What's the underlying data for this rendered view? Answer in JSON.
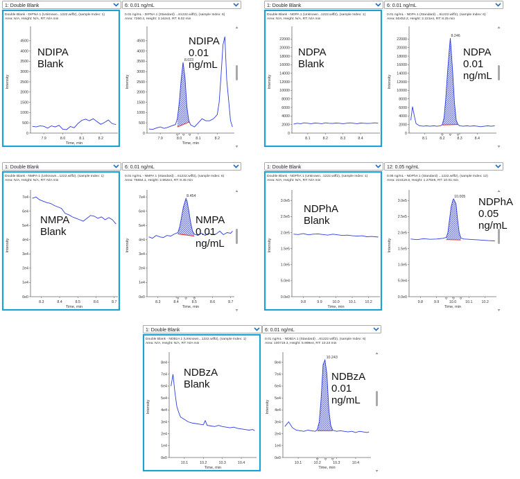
{
  "panels": [
    {
      "dropdown": "1: Double Blank",
      "header1": "Double Blank - DIPNA 1 (Unknown...1222.wiff2), (sample Index: 1)",
      "header2": "Area: N/A, Height: N/A, RT: N/A min",
      "overlay": [
        "NDIPA",
        "Blank"
      ],
      "highlight": true
    },
    {
      "dropdown": "6: 0.01 ng/mL",
      "header1": "0.01 ng/mL - DIPNA 1 (Standard) ...61222.wiff2), (sample Index: 6)",
      "header2": "Area: 7260.4, Height: 3.162e3, RT: 8.02 min",
      "overlay": [
        "NDIPA",
        "0.01",
        "ng/mL"
      ],
      "highlight": false
    },
    {
      "dropdown": "1: Double Blank",
      "header1": "Double Blank - NDPA 1 (Unknown...1222.wiff2), (sample Index: 1)",
      "header2": "Area: N/A, Height: N/A, RT: N/A min",
      "overlay": [
        "NDPA",
        "Blank"
      ],
      "highlight": true
    },
    {
      "dropdown": "6: 0.01 ng/mL",
      "header1": "0.01 ng/mL - NDPA 1 (Standard) ...61222.wiff2), (sample Index: 6)",
      "header2": "Area: 50453.2, Height: 2.221e4, RT: 8.25 min",
      "overlay": [
        "NDPA",
        "0.01",
        "ng/mL"
      ],
      "highlight": false
    },
    {
      "dropdown": "1: Double Blank",
      "header1": "Double Blank - NMPA 1 (Unknown...1222.wiff2), (sample Index: 1)",
      "header2": "Area: N/A, Height: N/A, RT: N/A min",
      "overlay": [
        "NMPA",
        "Blank"
      ],
      "highlight": true
    },
    {
      "dropdown": "6: 0.01 ng/mL",
      "header1": "0.01 ng/mL - NMPA 1 (Standard) ...61222.wiff2), (sample Index: 6)",
      "header2": "Area: 75654.1, Height: 2.862e4, RT: 8.45 min",
      "overlay": [
        "NMPA",
        "0.01",
        "ng/mL"
      ],
      "highlight": false
    },
    {
      "dropdown": "1: Double Blank",
      "header1": "Double Blank - NDPhA 1 (Unknown...1222.wiff2), (sample Index: 1)",
      "header2": "Area: N/A, Height: N/A, RT: N/A min",
      "overlay": [
        "NDPhA",
        "Blank"
      ],
      "highlight": true
    },
    {
      "dropdown": "12: 0.05 ng/mL",
      "header1": "0.05 ng/mL - NDPhA 1 (Standard) ...1222.wiff2), (sample Index: 12)",
      "header2": "Area: 224119.6, Height: 1.275e5, RT: 10.01 min",
      "overlay": [
        "NDPhA",
        "0.05",
        "ng/mL"
      ],
      "highlight": false
    },
    {
      "dropdown": "1: Double Blank",
      "header1": "Double Blank - NDBzA 1 (Unknown...1222.wiff2), (sample Index: 1)",
      "header2": "Area: N/A, Height: N/A, RT: N/A min",
      "overlay": [
        "NDBzA",
        "Blank"
      ],
      "highlight": true
    },
    {
      "dropdown": "6: 0.01 ng/mL",
      "header1": "0.01 ng/mL - NDBzA 1 (Standard) ...61222.wiff2), (sample Index: 6)",
      "header2": "Area: 100719.3, Height: 5.999e4, RT: 10.24 min",
      "overlay": [
        "NDBzA",
        "0.01",
        "ng/mL"
      ],
      "highlight": false
    }
  ],
  "chart_data": [
    {
      "type": "line",
      "xlabel": "Time, min",
      "ylabel": "Intensity",
      "xlim": [
        7.83,
        8.29
      ],
      "ylim": [
        0,
        5000
      ],
      "xticks": [
        "7.9",
        "8.0",
        "8.1",
        "8.2"
      ],
      "xtick_values": [
        7.9,
        8.0,
        8.1,
        8.2
      ],
      "yticks": [
        "0",
        "500",
        "1000",
        "1500",
        "2000",
        "2500",
        "3000",
        "3500",
        "4000",
        "4500"
      ],
      "ytick_values": [
        0,
        500,
        1000,
        1500,
        2000,
        2500,
        3000,
        3500,
        4000,
        4500
      ],
      "x": [
        7.84,
        7.86,
        7.88,
        7.9,
        7.92,
        7.94,
        7.96,
        7.98,
        8.0,
        8.02,
        8.04,
        8.06,
        8.08,
        8.1,
        8.12,
        8.14,
        8.16,
        8.18,
        8.2,
        8.22,
        8.24,
        8.26,
        8.28
      ],
      "y": [
        330,
        300,
        350,
        330,
        240,
        350,
        300,
        380,
        190,
        170,
        320,
        260,
        470,
        620,
        680,
        600,
        700,
        560,
        430,
        520,
        640,
        460,
        420
      ],
      "peak": null
    },
    {
      "type": "line",
      "xlabel": "Time, min",
      "ylabel": "Intensity",
      "xlim": [
        7.83,
        8.29
      ],
      "ylim": [
        0,
        5000
      ],
      "xticks": [
        "7.9",
        "8.0",
        "8.1",
        "8.2"
      ],
      "xtick_values": [
        7.9,
        8.0,
        8.1,
        8.2
      ],
      "yticks": [
        "0",
        "500",
        "1000",
        "1500",
        "2000",
        "2500",
        "3000",
        "3500",
        "4000",
        "4500"
      ],
      "ytick_values": [
        0,
        500,
        1000,
        1500,
        2000,
        2500,
        3000,
        3500,
        4000,
        4500
      ],
      "x": [
        7.84,
        7.86,
        7.88,
        7.9,
        7.92,
        7.94,
        7.96,
        7.98,
        7.99,
        8.0,
        8.01,
        8.02,
        8.03,
        8.04,
        8.05,
        8.06,
        8.08,
        8.1,
        8.12,
        8.14,
        8.16,
        8.18,
        8.2,
        8.21,
        8.22,
        8.23,
        8.24,
        8.25,
        8.27,
        8.28
      ],
      "y": [
        200,
        180,
        250,
        300,
        230,
        280,
        350,
        420,
        700,
        1500,
        2600,
        3450,
        2700,
        1300,
        600,
        400,
        300,
        500,
        700,
        600,
        600,
        700,
        900,
        1500,
        2800,
        4300,
        4700,
        2600,
        600,
        300
      ],
      "peak": {
        "label": "8.023",
        "x": 8.023,
        "y": 3450,
        "start": 7.99,
        "end": 8.055,
        "base_start": 300,
        "base_end": 550
      }
    },
    {
      "type": "line",
      "xlabel": "",
      "ylabel": "Intensity",
      "xlim": [
        8.01,
        8.51
      ],
      "ylim": [
        0,
        24000
      ],
      "xticks": [
        "8.1",
        "8.2",
        "8.3",
        "8.4"
      ],
      "xtick_values": [
        8.1,
        8.2,
        8.3,
        8.4
      ],
      "yticks": [
        "0",
        "2000",
        "4000",
        "6000",
        "8000",
        "10000",
        "12000",
        "14000",
        "16000",
        "18000",
        "20000",
        "22000"
      ],
      "ytick_values": [
        0,
        2000,
        4000,
        6000,
        8000,
        10000,
        12000,
        14000,
        16000,
        18000,
        20000,
        22000
      ],
      "x": [
        8.02,
        8.04,
        8.06,
        8.08,
        8.1,
        8.12,
        8.14,
        8.16,
        8.18,
        8.2,
        8.22,
        8.24,
        8.26,
        8.28,
        8.3,
        8.32,
        8.34,
        8.36,
        8.38,
        8.4,
        8.42,
        8.44,
        8.46,
        8.48,
        8.5
      ],
      "y": [
        2100,
        2300,
        2200,
        2400,
        2300,
        2200,
        2350,
        2300,
        2200,
        2400,
        2300,
        2250,
        2350,
        2300,
        2200,
        2300,
        2400,
        2300,
        2200,
        2350,
        2300,
        2250,
        2300,
        2400,
        2300
      ],
      "peak": null
    },
    {
      "type": "line",
      "xlabel": "",
      "ylabel": "Intensity",
      "xlim": [
        8.01,
        8.51
      ],
      "ylim": [
        0,
        24000
      ],
      "xticks": [
        "8.1",
        "8.2",
        "8.3",
        "8.4"
      ],
      "xtick_values": [
        8.1,
        8.2,
        8.3,
        8.4
      ],
      "yticks": [
        "0",
        "2000",
        "4000",
        "6000",
        "8000",
        "10000",
        "12000",
        "14000",
        "16000",
        "18000",
        "20000",
        "22000"
      ],
      "ytick_values": [
        0,
        2000,
        4000,
        6000,
        8000,
        10000,
        12000,
        14000,
        16000,
        18000,
        20000,
        22000
      ],
      "x": [
        8.02,
        8.03,
        8.04,
        8.05,
        8.07,
        8.09,
        8.11,
        8.13,
        8.15,
        8.17,
        8.19,
        8.2,
        8.21,
        8.22,
        8.23,
        8.24,
        8.246,
        8.25,
        8.26,
        8.27,
        8.28,
        8.29,
        8.3,
        8.32,
        8.34,
        8.36,
        8.38,
        8.4,
        8.42,
        8.44,
        8.46,
        8.48,
        8.5
      ],
      "y": [
        3000,
        6200,
        4000,
        2200,
        1700,
        1600,
        1700,
        1600,
        1700,
        1600,
        1700,
        2000,
        3500,
        8000,
        14000,
        19500,
        22200,
        20000,
        14000,
        7000,
        3000,
        2000,
        1700,
        1600,
        1700,
        1600,
        1700,
        1600,
        1500,
        1600,
        1700,
        1600,
        1700
      ],
      "peak": {
        "label": "8.246",
        "x": 8.246,
        "y": 22200,
        "start": 8.2,
        "end": 8.29,
        "base_start": 1900,
        "base_end": 2000
      }
    },
    {
      "type": "line",
      "xlabel": "Time, min",
      "ylabel": "Intensity",
      "xlim": [
        8.24,
        8.72
      ],
      "ylim": [
        0,
        72000
      ],
      "xticks": [
        "8.3",
        "8.4",
        "8.5",
        "8.6",
        "8.7"
      ],
      "xtick_values": [
        8.3,
        8.4,
        8.5,
        8.6,
        8.7
      ],
      "yticks": [
        "0e0",
        "1e4",
        "2e4",
        "3e4",
        "4e4",
        "5e4",
        "6e4",
        "7e4"
      ],
      "ytick_values": [
        0,
        10000,
        20000,
        30000,
        40000,
        50000,
        60000,
        70000
      ],
      "x": [
        8.25,
        8.27,
        8.29,
        8.31,
        8.33,
        8.35,
        8.37,
        8.39,
        8.41,
        8.43,
        8.45,
        8.47,
        8.49,
        8.51,
        8.53,
        8.55,
        8.57,
        8.59,
        8.61,
        8.63,
        8.65,
        8.67,
        8.69,
        8.71
      ],
      "y": [
        69000,
        70000,
        68000,
        67000,
        66000,
        65500,
        64000,
        63000,
        62000,
        58500,
        57500,
        56000,
        55000,
        54000,
        53000,
        55000,
        57000,
        56500,
        55000,
        56000,
        54000,
        55500,
        54000,
        51000
      ],
      "peak": null
    },
    {
      "type": "line",
      "xlabel": "Time, min",
      "ylabel": "Intensity",
      "xlim": [
        8.24,
        8.72
      ],
      "ylim": [
        0,
        72000
      ],
      "xticks": [
        "8.3",
        "8.4",
        "8.5",
        "8.6",
        "8.7"
      ],
      "xtick_values": [
        8.3,
        8.4,
        8.5,
        8.6,
        8.7
      ],
      "yticks": [
        "0e0",
        "1e4",
        "2e4",
        "3e4",
        "4e4",
        "5e4",
        "6e4",
        "7e4"
      ],
      "ytick_values": [
        0,
        10000,
        20000,
        30000,
        40000,
        50000,
        60000,
        70000
      ],
      "x": [
        8.25,
        8.27,
        8.29,
        8.31,
        8.33,
        8.35,
        8.37,
        8.39,
        8.41,
        8.42,
        8.43,
        8.44,
        8.454,
        8.46,
        8.47,
        8.48,
        8.49,
        8.5,
        8.52,
        8.54,
        8.56,
        8.58,
        8.6,
        8.62,
        8.64,
        8.66,
        8.68,
        8.7,
        8.71
      ],
      "y": [
        42000,
        41000,
        43000,
        42000,
        41500,
        43000,
        42500,
        44000,
        45000,
        49000,
        56000,
        63000,
        69000,
        67000,
        60000,
        52000,
        46000,
        44000,
        43000,
        44500,
        43000,
        44500,
        43500,
        44000,
        46000,
        43500,
        45000,
        44500,
        46000
      ],
      "peak": {
        "label": "8.454",
        "x": 8.454,
        "y": 69000,
        "start": 8.41,
        "end": 8.5,
        "base_start": 44000,
        "base_end": 42500
      }
    },
    {
      "type": "line",
      "xlabel": "Time, min",
      "ylabel": "Intensity",
      "xlim": [
        9.73,
        10.27
      ],
      "ylim": [
        0,
        320000
      ],
      "xticks": [
        "9.8",
        "9.9",
        "10.0",
        "10.1",
        "10.2"
      ],
      "xtick_values": [
        9.8,
        9.9,
        10.0,
        10.1,
        10.2
      ],
      "yticks": [
        "0.0e0",
        "5.0e4",
        "1.0e5",
        "1.5e5",
        "2.0e5",
        "2.5e5",
        "3.0e5"
      ],
      "ytick_values": [
        0,
        50000,
        100000,
        150000,
        200000,
        250000,
        300000
      ],
      "x": [
        9.74,
        9.77,
        9.8,
        9.83,
        9.86,
        9.89,
        9.92,
        9.95,
        9.98,
        10.01,
        10.04,
        10.07,
        10.1,
        10.13,
        10.16,
        10.19,
        10.22,
        10.26
      ],
      "y": [
        195000,
        194000,
        197000,
        193000,
        195000,
        196000,
        194000,
        192000,
        195000,
        193000,
        191000,
        192000,
        190000,
        189000,
        190000,
        187000,
        188000,
        186000
      ],
      "peak": null
    },
    {
      "type": "line",
      "xlabel": "Time, min",
      "ylabel": "Intensity",
      "xlim": [
        9.73,
        10.27
      ],
      "ylim": [
        0,
        320000
      ],
      "xticks": [
        "9.8",
        "9.9",
        "10.0",
        "10.1",
        "10.2"
      ],
      "xtick_values": [
        9.8,
        9.9,
        10.0,
        10.1,
        10.2
      ],
      "yticks": [
        "0.0e0",
        "5.0e4",
        "1.0e5",
        "1.5e5",
        "2.0e5",
        "2.5e5",
        "3.0e5"
      ],
      "ytick_values": [
        0,
        50000,
        100000,
        150000,
        200000,
        250000,
        300000
      ],
      "x": [
        9.74,
        9.78,
        9.82,
        9.86,
        9.9,
        9.94,
        9.96,
        9.97,
        9.98,
        9.99,
        10.0,
        10.005,
        10.02,
        10.03,
        10.04,
        10.05,
        10.07,
        10.1,
        10.13,
        10.16,
        10.19,
        10.22,
        10.26
      ],
      "y": [
        180000,
        178000,
        181000,
        179000,
        180000,
        182000,
        185000,
        200000,
        240000,
        280000,
        300000,
        305000,
        290000,
        240000,
        200000,
        183000,
        180000,
        179000,
        178000,
        177000,
        176000,
        175000,
        174000
      ],
      "peak": {
        "label": "10.005",
        "x": 10.005,
        "y": 305000,
        "start": 9.96,
        "end": 10.05,
        "base_start": 178000,
        "base_end": 177000
      }
    },
    {
      "type": "line",
      "xlabel": "Time, min",
      "ylabel": "Intensity",
      "xlim": [
        10.02,
        10.48
      ],
      "ylim": [
        0,
        85000
      ],
      "xticks": [
        "10.1",
        "10.2",
        "10.3",
        "10.4"
      ],
      "xtick_values": [
        10.1,
        10.2,
        10.3,
        10.4
      ],
      "yticks": [
        "0e0",
        "1e4",
        "2e4",
        "3e4",
        "4e4",
        "5e4",
        "6e4",
        "7e4",
        "8e4"
      ],
      "ytick_values": [
        0,
        10000,
        20000,
        30000,
        40000,
        50000,
        60000,
        70000,
        80000
      ],
      "x": [
        10.03,
        10.04,
        10.05,
        10.06,
        10.07,
        10.08,
        10.1,
        10.12,
        10.14,
        10.16,
        10.18,
        10.2,
        10.21,
        10.22,
        10.24,
        10.26,
        10.28,
        10.3,
        10.32,
        10.34,
        10.36,
        10.38,
        10.4,
        10.42,
        10.44,
        10.46,
        10.47
      ],
      "y": [
        60000,
        70000,
        55000,
        43000,
        38000,
        34000,
        32000,
        30000,
        29000,
        28500,
        28000,
        27500,
        31000,
        27000,
        26500,
        26000,
        27000,
        26000,
        25500,
        25000,
        25500,
        24500,
        24000,
        23500,
        23000,
        23500,
        22500
      ],
      "peak": null
    },
    {
      "type": "line",
      "xlabel": "Time, min",
      "ylabel": "Intensity",
      "xlim": [
        10.02,
        10.48
      ],
      "ylim": [
        0,
        85000
      ],
      "xticks": [
        "10.1",
        "10.2",
        "10.3",
        "10.4"
      ],
      "xtick_values": [
        10.1,
        10.2,
        10.3,
        10.4
      ],
      "yticks": [
        "0e0",
        "1e4",
        "2e4",
        "3e4",
        "4e4",
        "5e4",
        "6e4",
        "7e4",
        "8e4"
      ],
      "ytick_values": [
        0,
        10000,
        20000,
        30000,
        40000,
        50000,
        60000,
        70000,
        80000
      ],
      "x": [
        10.03,
        10.05,
        10.07,
        10.09,
        10.11,
        10.13,
        10.15,
        10.17,
        10.19,
        10.2,
        10.21,
        10.22,
        10.23,
        10.24,
        10.25,
        10.26,
        10.27,
        10.28,
        10.3,
        10.32,
        10.34,
        10.36,
        10.38,
        10.4,
        10.42,
        10.44,
        10.46,
        10.47
      ],
      "y": [
        26000,
        30000,
        25000,
        23000,
        22500,
        22000,
        23000,
        22500,
        22000,
        23500,
        30000,
        50000,
        78000,
        82000,
        70000,
        40000,
        27000,
        23000,
        22000,
        22500,
        22000,
        21500,
        22000,
        21000,
        22000,
        21500,
        21000,
        21500
      ],
      "peak": {
        "label": "10.243",
        "x": 10.243,
        "y": 82000,
        "start": 10.2,
        "end": 10.28,
        "base_start": 22500,
        "base_end": 22500
      }
    }
  ]
}
